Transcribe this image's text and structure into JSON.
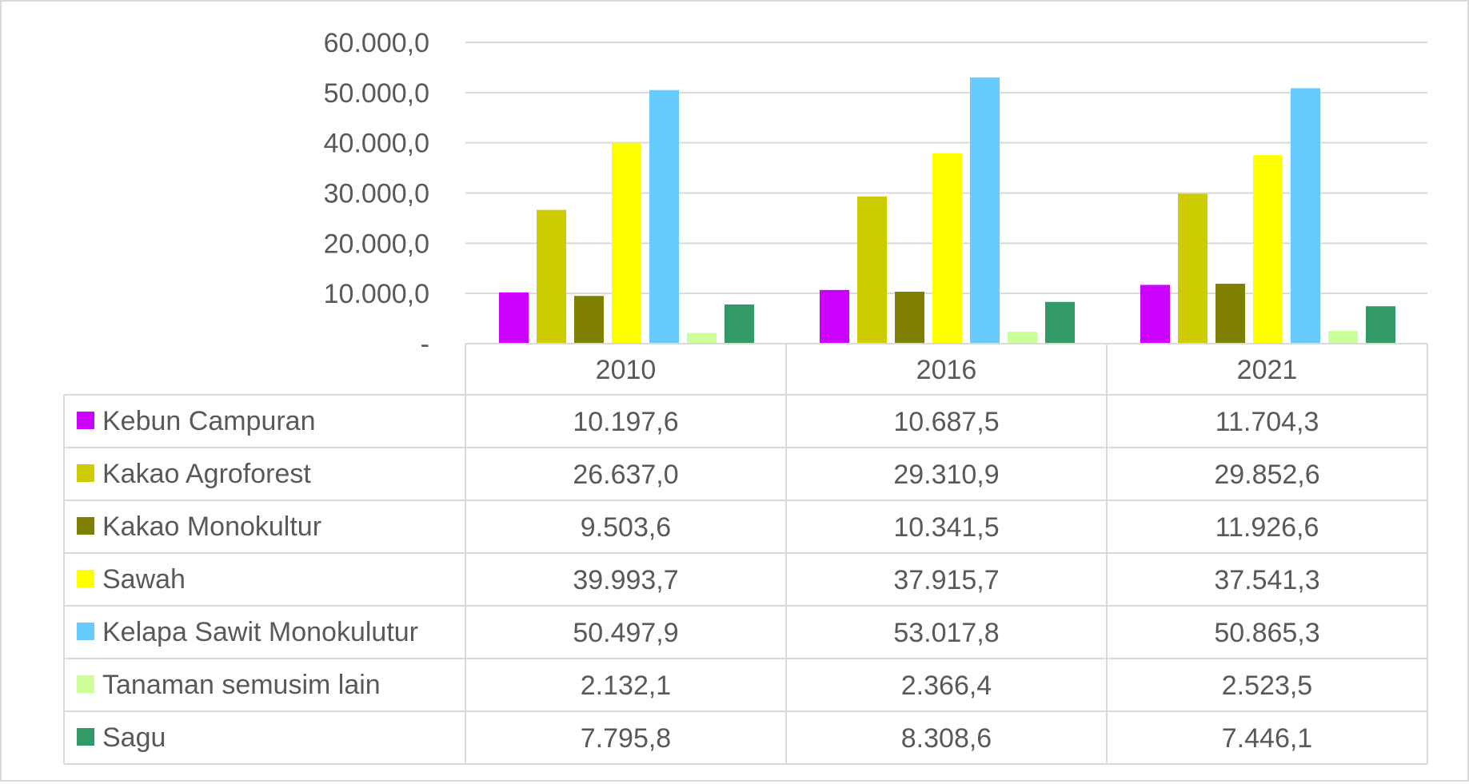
{
  "chart_data": {
    "type": "bar",
    "categories": [
      "2010",
      "2016",
      "2021"
    ],
    "ylim": [
      0,
      60000
    ],
    "yticks": [
      {
        "value": 0,
        "label": "-"
      },
      {
        "value": 10000,
        "label": "10.000,0"
      },
      {
        "value": 20000,
        "label": "20.000,0"
      },
      {
        "value": 30000,
        "label": "30.000,0"
      },
      {
        "value": 40000,
        "label": "40.000,0"
      },
      {
        "value": 50000,
        "label": "50.000,0"
      },
      {
        "value": 60000,
        "label": "60.000,0"
      }
    ],
    "grid": true,
    "legend": "data-table",
    "series": [
      {
        "name": "Kebun Campuran",
        "color": "#cc00ff",
        "values": [
          10197.6,
          10687.5,
          11704.3
        ],
        "labels": [
          "10.197,6",
          "10.687,5",
          "11.704,3"
        ]
      },
      {
        "name": "Kakao Agroforest",
        "color": "#cccc00",
        "values": [
          26637.0,
          29310.9,
          29852.6
        ],
        "labels": [
          "26.637,0",
          "29.310,9",
          "29.852,6"
        ]
      },
      {
        "name": "Kakao Monokultur",
        "color": "#808000",
        "values": [
          9503.6,
          10341.5,
          11926.6
        ],
        "labels": [
          "9.503,6",
          "10.341,5",
          "11.926,6"
        ]
      },
      {
        "name": "Sawah",
        "color": "#ffff00",
        "values": [
          39993.7,
          37915.7,
          37541.3
        ],
        "labels": [
          "39.993,7",
          "37.915,7",
          "37.541,3"
        ]
      },
      {
        "name": "Kelapa Sawit Monokulutur",
        "color": "#66ccff",
        "values": [
          50497.9,
          53017.8,
          50865.3
        ],
        "labels": [
          "50.497,9",
          "53.017,8",
          "50.865,3"
        ]
      },
      {
        "name": "Tanaman semusim lain",
        "color": "#ccff99",
        "values": [
          2132.1,
          2366.4,
          2523.5
        ],
        "labels": [
          "2.132,1",
          "2.366,4",
          "2.523,5"
        ]
      },
      {
        "name": "Sagu",
        "color": "#339966",
        "values": [
          7795.8,
          8308.6,
          7446.1
        ],
        "labels": [
          "7.795,8",
          "8.308,6",
          "7.446,1"
        ]
      }
    ]
  }
}
